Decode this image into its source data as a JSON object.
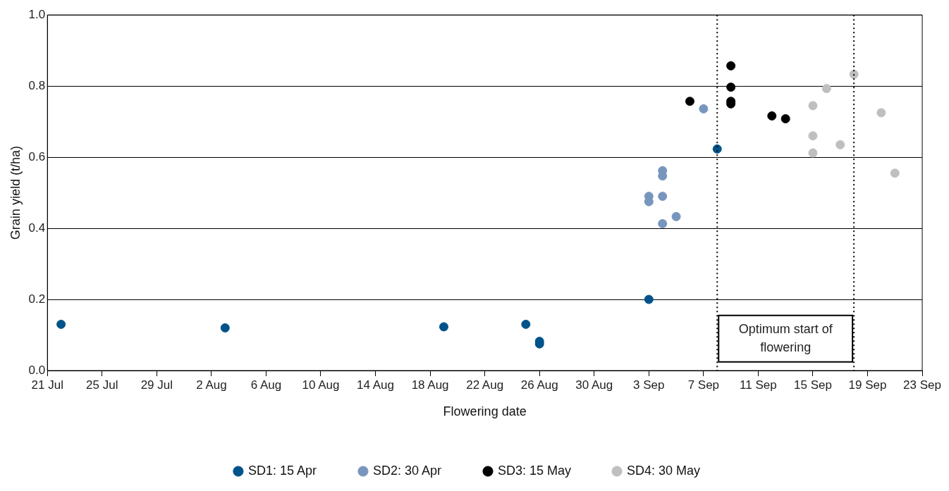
{
  "chart_data": {
    "type": "scatter",
    "xlabel": "Flowering date",
    "ylabel": "Grain yield (t/ha)",
    "xlim": [
      "--07-21",
      "--09-23"
    ],
    "xticks": [
      {
        "value": "--07-21",
        "label": "21 Jul"
      },
      {
        "value": "--07-25",
        "label": "25 Jul"
      },
      {
        "value": "--07-29",
        "label": "29 Jul"
      },
      {
        "value": "--08-02",
        "label": "2 Aug"
      },
      {
        "value": "--08-06",
        "label": "6 Aug"
      },
      {
        "value": "--08-10",
        "label": "10 Aug"
      },
      {
        "value": "--08-14",
        "label": "14 Aug"
      },
      {
        "value": "--08-18",
        "label": "18 Aug"
      },
      {
        "value": "--08-22",
        "label": "22 Aug"
      },
      {
        "value": "--08-26",
        "label": "26 Aug"
      },
      {
        "value": "--08-30",
        "label": "30 Aug"
      },
      {
        "value": "--09-03",
        "label": "3 Sep"
      },
      {
        "value": "--09-07",
        "label": "7 Sep"
      },
      {
        "value": "--09-11",
        "label": "11 Sep"
      },
      {
        "value": "--09-15",
        "label": "15 Sep"
      },
      {
        "value": "--09-19",
        "label": "19 Sep"
      },
      {
        "value": "--09-23",
        "label": "23 Sep"
      }
    ],
    "ylim": [
      0,
      1
    ],
    "yticks": [
      {
        "value": 0,
        "label": "0.0"
      },
      {
        "value": 0.2,
        "label": "0.2"
      },
      {
        "value": 0.4,
        "label": "0.4"
      },
      {
        "value": 0.6,
        "label": "0.6"
      },
      {
        "value": 0.8,
        "label": "0.8"
      },
      {
        "value": 1,
        "label": "1.0"
      }
    ],
    "grid": "y",
    "legend": "bottom",
    "marker": "circle",
    "series": [
      {
        "name": "SD1: 15 Apr",
        "color": "#00538a",
        "x": [
          "--07-22",
          "--08-03",
          "--08-19",
          "--08-25",
          "--08-26",
          "--08-26",
          "--09-03",
          "--09-08"
        ],
        "values": [
          0.13,
          0.12,
          0.123,
          0.13,
          0.082,
          0.075,
          0.2,
          0.623
        ]
      },
      {
        "name": "SD2: 30 Apr",
        "color": "#7896bd",
        "x": [
          "--09-03",
          "--09-03",
          "--09-04",
          "--09-04",
          "--09-04",
          "--09-04",
          "--09-05",
          "--09-07"
        ],
        "values": [
          0.49,
          0.475,
          0.562,
          0.547,
          0.49,
          0.413,
          0.433,
          0.736
        ]
      },
      {
        "name": "SD3: 15 May",
        "color": "#000000",
        "x": [
          "--09-06",
          "--09-09",
          "--09-09",
          "--09-09",
          "--09-09",
          "--09-12",
          "--09-13"
        ],
        "values": [
          0.757,
          0.857,
          0.797,
          0.757,
          0.75,
          0.716,
          0.708
        ]
      },
      {
        "name": "SD4: 30 May",
        "color": "#bfbfbf",
        "x": [
          "--09-15",
          "--09-15",
          "--09-15",
          "--09-16",
          "--09-17",
          "--09-18",
          "--09-20",
          "--09-21"
        ],
        "values": [
          0.745,
          0.66,
          0.612,
          0.793,
          0.635,
          0.833,
          0.725,
          0.555
        ]
      }
    ],
    "ref_lines": [
      {
        "axis": "x",
        "value": "--09-08",
        "color": "#000000",
        "line_style": "dotted"
      },
      {
        "axis": "x",
        "value": "--09-18",
        "color": "#000000",
        "line_style": "dotted"
      }
    ],
    "annotations": [
      "Optimum start of flowering"
    ]
  }
}
